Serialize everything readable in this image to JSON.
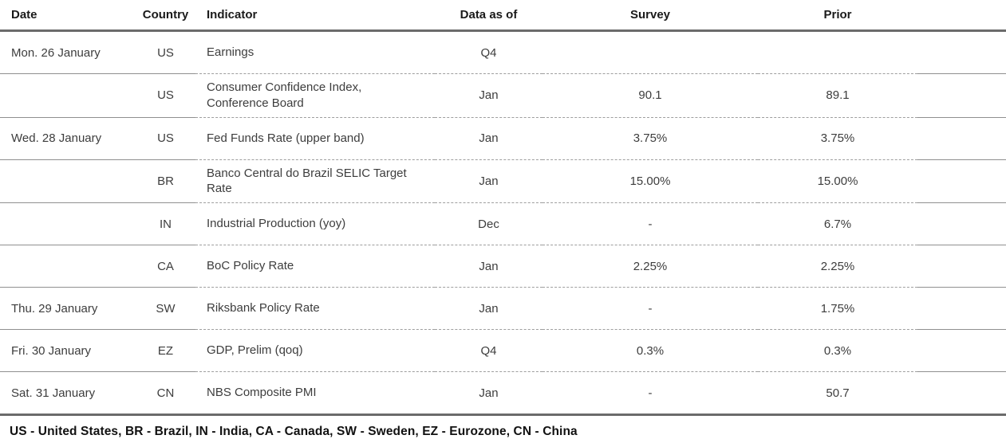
{
  "colors": {
    "thick_rule": "#6b6b6b",
    "row_rule_solid": "#8f8f8f",
    "row_rule_dashed": "#9e9e9e",
    "header_text": "#1a1a1a",
    "body_text": "#3d3d3d",
    "legend_text": "#111111"
  },
  "table": {
    "columns": [
      "Date",
      "Country",
      "Indicator",
      "Data as of",
      "Survey",
      "Prior"
    ],
    "rows": [
      {
        "date": "Mon. 26 January",
        "country": "US",
        "indicator": "Earnings",
        "data_as_of": "Q4",
        "survey": "",
        "prior": ""
      },
      {
        "date": "",
        "country": "US",
        "indicator": "Consumer Confidence Index, Conference Board",
        "data_as_of": "Jan",
        "survey": "90.1",
        "prior": "89.1"
      },
      {
        "date": "Wed. 28 January",
        "country": "US",
        "indicator": "Fed Funds Rate (upper band)",
        "data_as_of": "Jan",
        "survey": "3.75%",
        "prior": "3.75%"
      },
      {
        "date": "",
        "country": "BR",
        "indicator": "Banco Central do Brazil SELIC Target Rate",
        "data_as_of": "Jan",
        "survey": "15.00%",
        "prior": "15.00%"
      },
      {
        "date": "",
        "country": "IN",
        "indicator": "Industrial Production (yoy)",
        "data_as_of": "Dec",
        "survey": "-",
        "prior": "6.7%"
      },
      {
        "date": "",
        "country": "CA",
        "indicator": "BoC Policy Rate",
        "data_as_of": "Jan",
        "survey": "2.25%",
        "prior": "2.25%"
      },
      {
        "date": "Thu. 29 January",
        "country": "SW",
        "indicator": "Riksbank Policy Rate",
        "data_as_of": "Jan",
        "survey": "-",
        "prior": "1.75%"
      },
      {
        "date": "Fri. 30 January",
        "country": "EZ",
        "indicator": "GDP, Prelim (qoq)",
        "data_as_of": "Q4",
        "survey": "0.3%",
        "prior": "0.3%"
      },
      {
        "date": "Sat. 31 January",
        "country": "CN",
        "indicator": "NBS Composite PMI",
        "data_as_of": "Jan",
        "survey": "-",
        "prior": "50.7"
      }
    ]
  },
  "footer": {
    "legend": "US - United States, BR - Brazil, IN - India, CA - Canada, SW - Sweden, EZ - Eurozone, CN - China"
  }
}
